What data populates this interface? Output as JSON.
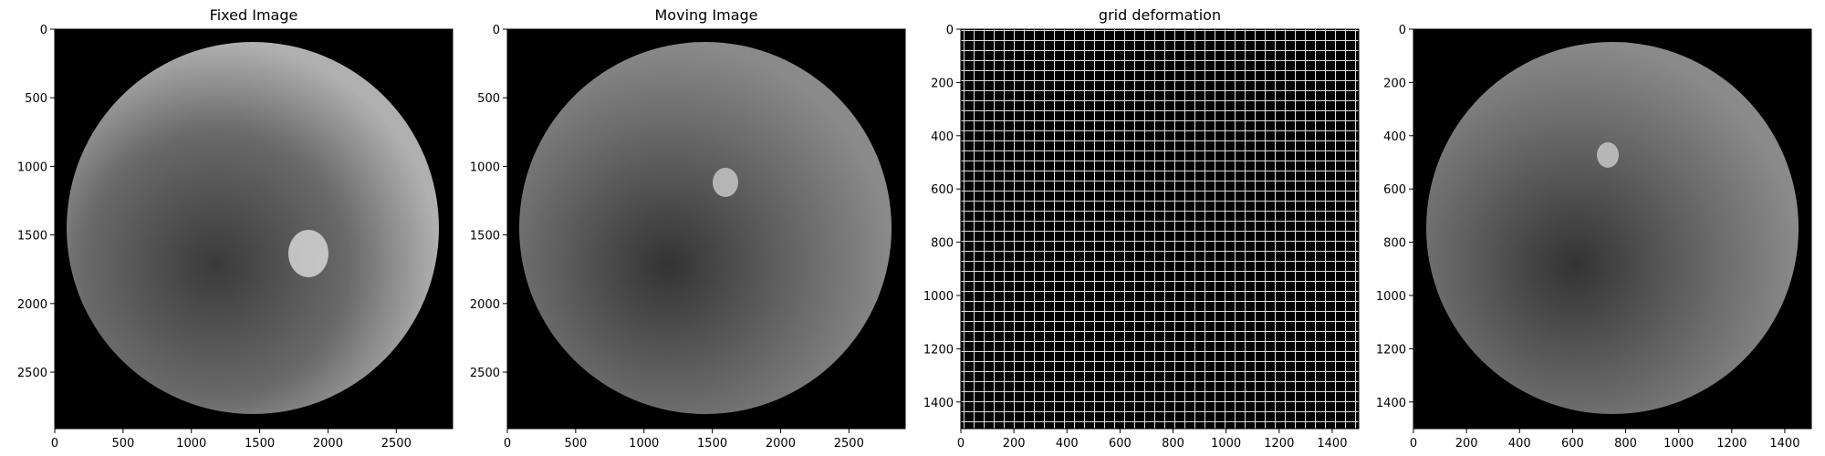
{
  "chart_data": [
    {
      "type": "image",
      "title": "Fixed Image",
      "xlim": [
        0,
        2912
      ],
      "ylim": [
        2912,
        0
      ],
      "xticks": [
        0,
        500,
        1000,
        1500,
        2000,
        2500
      ],
      "yticks": [
        0,
        500,
        1000,
        1500,
        2000,
        2500
      ]
    },
    {
      "type": "image",
      "title": "Moving Image",
      "xlim": [
        0,
        2912
      ],
      "ylim": [
        2912,
        0
      ],
      "xticks": [
        0,
        500,
        1000,
        1500,
        2000,
        2500
      ],
      "yticks": [
        0,
        500,
        1000,
        1500,
        2000,
        2500
      ]
    },
    {
      "type": "image",
      "title": "grid deformation",
      "xlim": [
        0,
        1500
      ],
      "ylim": [
        1500,
        0
      ],
      "xticks": [
        0,
        200,
        400,
        600,
        800,
        1000,
        1200,
        1400
      ],
      "yticks": [
        0,
        200,
        400,
        600,
        800,
        1000,
        1200,
        1400
      ]
    },
    {
      "type": "image",
      "xlim": [
        0,
        1500
      ],
      "ylim": [
        1500,
        0
      ],
      "xticks": [
        0,
        200,
        400,
        600,
        800,
        1000,
        1200,
        1400
      ],
      "yticks": [
        0,
        200,
        400,
        600,
        800,
        1000,
        1200,
        1400
      ]
    }
  ]
}
